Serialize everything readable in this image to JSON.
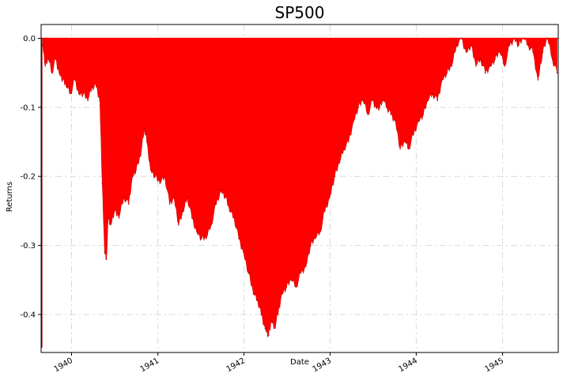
{
  "chart_data": {
    "type": "area",
    "title": "SP500",
    "xlabel": "Date",
    "ylabel": "Returns",
    "xlim": [
      "1939-08-25",
      "1945-08-25"
    ],
    "ylim": [
      -0.455,
      0.02
    ],
    "x_ticks": [
      "1940",
      "1941",
      "1942",
      "1943",
      "1944",
      "1945"
    ],
    "y_ticks": [
      "0.0",
      "-0.1",
      "-0.2",
      "-0.3",
      "-0.4"
    ],
    "y_tick_values": [
      0.0,
      -0.1,
      -0.2,
      -0.3,
      -0.4
    ],
    "grid": true,
    "fill_color": "#ff0000",
    "series": [
      {
        "x": [
          "1939-09-01",
          "1939-09-12",
          "1939-09-25",
          "1939-10-10",
          "1939-10-25",
          "1939-11-10",
          "1939-11-25",
          "1939-12-10",
          "1939-12-28",
          "1940-01-15",
          "1940-02-01",
          "1940-02-20",
          "1940-03-10",
          "1940-03-28",
          "1940-04-15",
          "1940-04-30",
          "1940-05-10",
          "1940-05-20",
          "1940-05-28",
          "1940-06-05",
          "1940-06-15",
          "1940-07-01",
          "1940-07-20",
          "1940-08-10",
          "1940-08-30",
          "1940-09-15",
          "1940-10-01",
          "1940-10-20",
          "1940-11-05",
          "1940-11-15",
          "1940-12-01",
          "1940-12-20",
          "1941-01-10",
          "1941-01-30",
          "1941-02-20",
          "1941-03-10",
          "1941-03-30",
          "1941-04-20",
          "1941-05-05",
          "1941-05-25",
          "1941-06-15",
          "1941-07-05",
          "1941-07-25",
          "1941-08-15",
          "1941-09-05",
          "1941-09-25",
          "1941-10-15",
          "1941-11-01",
          "1941-11-20",
          "1941-12-10",
          "1941-12-30",
          "1942-01-20",
          "1942-02-10",
          "1942-02-28",
          "1942-03-15",
          "1942-04-01",
          "1942-04-15",
          "1942-04-28",
          "1942-05-10",
          "1942-05-25",
          "1942-06-10",
          "1942-06-30",
          "1942-07-20",
          "1942-08-10",
          "1942-08-30",
          "1942-09-20",
          "1942-10-10",
          "1942-10-30",
          "1942-11-20",
          "1942-12-10",
          "1942-12-30",
          "1943-01-20",
          "1943-02-10",
          "1943-02-28",
          "1943-03-20",
          "1943-04-10",
          "1943-04-30",
          "1943-05-20",
          "1943-06-10",
          "1943-06-30",
          "1943-07-15",
          "1943-07-30",
          "1943-08-15",
          "1943-08-30",
          "1943-09-15",
          "1943-10-05",
          "1943-10-25",
          "1943-11-15",
          "1943-11-30",
          "1943-12-20",
          "1944-01-10",
          "1944-01-31",
          "1944-02-20",
          "1944-03-10",
          "1944-03-31",
          "1944-04-20",
          "1944-05-10",
          "1944-05-31",
          "1944-06-20",
          "1944-07-10",
          "1944-07-31",
          "1944-08-20",
          "1944-09-10",
          "1944-09-30",
          "1944-10-20",
          "1944-11-10",
          "1944-11-30",
          "1944-12-20",
          "1945-01-10",
          "1945-01-31",
          "1945-02-20",
          "1945-03-10",
          "1945-03-31",
          "1945-04-20",
          "1945-05-10",
          "1945-05-31",
          "1945-06-20",
          "1945-07-10",
          "1945-07-31",
          "1945-08-20"
        ],
        "values": [
          -0.01,
          -0.04,
          -0.03,
          -0.05,
          -0.03,
          -0.05,
          -0.06,
          -0.07,
          -0.08,
          -0.06,
          -0.08,
          -0.08,
          -0.09,
          -0.07,
          -0.07,
          -0.09,
          -0.21,
          -0.31,
          -0.32,
          -0.26,
          -0.27,
          -0.25,
          -0.26,
          -0.23,
          -0.24,
          -0.2,
          -0.19,
          -0.17,
          -0.13,
          -0.15,
          -0.19,
          -0.2,
          -0.21,
          -0.2,
          -0.24,
          -0.23,
          -0.27,
          -0.25,
          -0.23,
          -0.26,
          -0.28,
          -0.29,
          -0.29,
          -0.27,
          -0.24,
          -0.22,
          -0.23,
          -0.25,
          -0.26,
          -0.29,
          -0.31,
          -0.34,
          -0.37,
          -0.38,
          -0.4,
          -0.42,
          -0.43,
          -0.41,
          -0.42,
          -0.4,
          -0.37,
          -0.36,
          -0.35,
          -0.36,
          -0.34,
          -0.33,
          -0.3,
          -0.29,
          -0.28,
          -0.25,
          -0.23,
          -0.2,
          -0.18,
          -0.16,
          -0.15,
          -0.12,
          -0.1,
          -0.09,
          -0.11,
          -0.09,
          -0.1,
          -0.1,
          -0.09,
          -0.1,
          -0.11,
          -0.12,
          -0.16,
          -0.15,
          -0.16,
          -0.14,
          -0.12,
          -0.11,
          -0.09,
          -0.08,
          -0.09,
          -0.06,
          -0.05,
          -0.04,
          -0.01,
          -0.0,
          -0.02,
          -0.01,
          -0.04,
          -0.03,
          -0.05,
          -0.04,
          -0.03,
          -0.02,
          -0.04,
          -0.01,
          -0.0,
          -0.01,
          -0.0,
          -0.01,
          -0.02,
          -0.06,
          -0.02,
          -0.0,
          -0.03,
          -0.05
        ]
      }
    ]
  }
}
